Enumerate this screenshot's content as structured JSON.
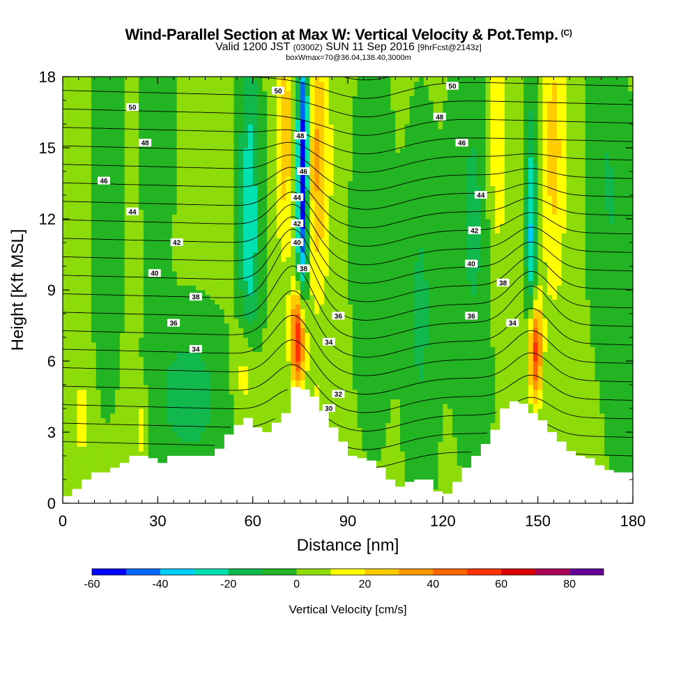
{
  "header": {
    "title": "Wind-Parallel Section at Max W: Vertical Velocity & Pot.Temp.",
    "copyright": "(C)",
    "valid_prefix": "Valid 1200 JST",
    "valid_utc": "(0300Z)",
    "valid_date": "SUN 11 Sep 2016",
    "forecast": "[9hrFcst@2143z]",
    "box_info": "boxWmax=70@36.04,138.40,3000m"
  },
  "colors": {
    "bins": [
      "#0000ff",
      "#0066ff",
      "#00ccff",
      "#00e0b0",
      "#11b84e",
      "#22b422",
      "#8ddc0a",
      "#ffff00",
      "#ffcc00",
      "#ff9900",
      "#ff6600",
      "#ff3300",
      "#dd0000",
      "#aa0055",
      "#660099"
    ],
    "terrain": "#ffffff",
    "contour": "#000000"
  },
  "chart_data": {
    "type": "heatmap",
    "xlabel": "Distance [nm]",
    "ylabel": "Height [Kft MSL]",
    "xlim": [
      0,
      180
    ],
    "ylim": [
      0,
      18
    ],
    "xticks": [
      "0",
      "30",
      "60",
      "90",
      "120",
      "150",
      "180"
    ],
    "yticks": [
      "0",
      "3",
      "6",
      "9",
      "12",
      "15",
      "18"
    ],
    "colorbar": {
      "title": "Vertical Velocity [cm/s]",
      "bounds": [
        -60,
        -50,
        -40,
        -30,
        -20,
        -10,
        0,
        10,
        20,
        30,
        40,
        50,
        60,
        70,
        80,
        90
      ],
      "labels": [
        "-60",
        "-40",
        "-20",
        "0",
        "20",
        "40",
        "60",
        "80"
      ]
    },
    "terrain": {
      "x": [
        0,
        3,
        6,
        9,
        12,
        15,
        18,
        21,
        24,
        27,
        30,
        33,
        36,
        39,
        42,
        45,
        48,
        51,
        54,
        57,
        60,
        63,
        66,
        69,
        72,
        75,
        78,
        81,
        84,
        87,
        90,
        93,
        96,
        99,
        102,
        105,
        108,
        111,
        114,
        117,
        120,
        123,
        126,
        129,
        132,
        135,
        138,
        141,
        144,
        147,
        150,
        153,
        156,
        159,
        162,
        165,
        168,
        171,
        174,
        177,
        180
      ],
      "y": [
        0.3,
        0.6,
        1.0,
        1.3,
        1.3,
        1.5,
        1.7,
        2.0,
        2.0,
        1.9,
        1.7,
        2.0,
        2.0,
        2.0,
        2.0,
        2.0,
        2.3,
        2.9,
        3.3,
        3.6,
        3.2,
        3.0,
        3.4,
        3.8,
        4.9,
        4.8,
        4.5,
        3.9,
        3.2,
        2.6,
        2.0,
        1.9,
        1.8,
        1.5,
        1.0,
        0.7,
        0.9,
        1.0,
        1.0,
        0.5,
        0.4,
        0.9,
        1.5,
        2.0,
        2.5,
        3.1,
        4.0,
        4.3,
        4.2,
        3.8,
        3.5,
        3.0,
        2.6,
        2.2,
        2.0,
        1.9,
        1.6,
        1.4,
        1.3,
        1.3,
        1.3
      ]
    },
    "features": [
      {
        "kind": "updraft",
        "x": 74.5,
        "y": 7.0,
        "peak": 70
      },
      {
        "kind": "updraft",
        "x": 149,
        "y": 6.5,
        "peak": 60
      },
      {
        "kind": "downdraft",
        "x": 75,
        "y": 15.5,
        "peak": -60
      }
    ],
    "theta_contours": [
      {
        "value": "30",
        "x": 84,
        "y": 4.0
      },
      {
        "value": "32",
        "x": 87,
        "y": 4.6
      },
      {
        "value": "34",
        "x": 84,
        "y": 6.8
      },
      {
        "value": "34",
        "x": 42,
        "y": 6.5
      },
      {
        "value": "34",
        "x": 142,
        "y": 7.6
      },
      {
        "value": "36",
        "x": 35,
        "y": 7.6
      },
      {
        "value": "36",
        "x": 87,
        "y": 7.9
      },
      {
        "value": "36",
        "x": 129,
        "y": 7.9
      },
      {
        "value": "38",
        "x": 42,
        "y": 8.7
      },
      {
        "value": "38",
        "x": 76,
        "y": 9.9
      },
      {
        "value": "38",
        "x": 139,
        "y": 9.3
      },
      {
        "value": "40",
        "x": 29,
        "y": 9.7
      },
      {
        "value": "40",
        "x": 74,
        "y": 11.0
      },
      {
        "value": "40",
        "x": 129,
        "y": 10.1
      },
      {
        "value": "42",
        "x": 36,
        "y": 11.0
      },
      {
        "value": "42",
        "x": 74,
        "y": 11.8
      },
      {
        "value": "42",
        "x": 130,
        "y": 11.5
      },
      {
        "value": "44",
        "x": 22,
        "y": 12.3
      },
      {
        "value": "44",
        "x": 74,
        "y": 12.9
      },
      {
        "value": "44",
        "x": 132,
        "y": 13.0
      },
      {
        "value": "46",
        "x": 13,
        "y": 13.6
      },
      {
        "value": "46",
        "x": 76,
        "y": 14.0
      },
      {
        "value": "46",
        "x": 126,
        "y": 15.2
      },
      {
        "value": "48",
        "x": 26,
        "y": 15.2
      },
      {
        "value": "48",
        "x": 75,
        "y": 15.5
      },
      {
        "value": "48",
        "x": 119,
        "y": 16.3
      },
      {
        "value": "50",
        "x": 22,
        "y": 16.7
      },
      {
        "value": "50",
        "x": 68,
        "y": 17.4
      },
      {
        "value": "50",
        "x": 123,
        "y": 17.6
      }
    ]
  }
}
